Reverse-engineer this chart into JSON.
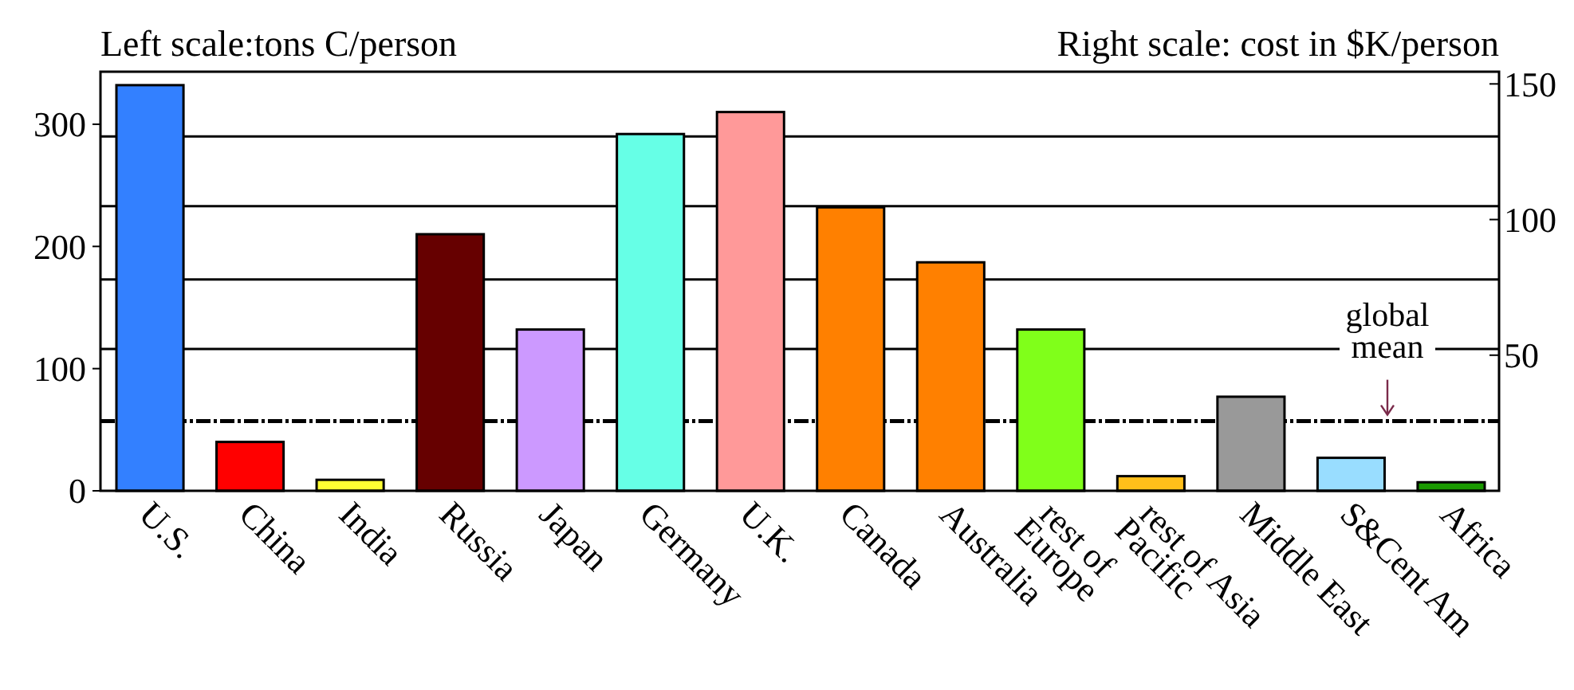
{
  "chart_data": {
    "type": "bar",
    "ylabel": "Left scale:tons C/person",
    "y2label": "Right scale: cost in $K/person",
    "categories": [
      "U.S.",
      "China",
      "India",
      "Russia",
      "Japan",
      "Germany",
      "U.K.",
      "Canada",
      "Australia",
      "rest of\nEurope",
      "rest of Asia\nPacific",
      "Middle East",
      "S&Cent Am",
      "Africa"
    ],
    "values": [
      332,
      40,
      9,
      210,
      132,
      292,
      310,
      232,
      187,
      132,
      12,
      77,
      27,
      7
    ],
    "colors": [
      "#3380ff",
      "#ff0000",
      "#ffff33",
      "#660000",
      "#cc99ff",
      "#66ffe6",
      "#ff9999",
      "#ff8000",
      "#ff8000",
      "#80ff1a",
      "#ffbf1a",
      "#999999",
      "#99ddff",
      "#1a9900"
    ],
    "ylim": [
      0,
      343
    ],
    "yticks": [
      0,
      100,
      200,
      300
    ],
    "y2lim": [
      0,
      154.5
    ],
    "y2ticks": [
      50,
      100,
      150
    ],
    "ref_lines": [
      {
        "axis": "y",
        "value": 57,
        "label": "global\nmean",
        "line_style": "dashed"
      },
      {
        "axis": "y",
        "value": 116,
        "line_style": "solid"
      },
      {
        "axis": "y",
        "value": 173,
        "line_style": "solid"
      },
      {
        "axis": "y",
        "value": 233,
        "line_style": "solid"
      },
      {
        "axis": "y",
        "value": 290,
        "line_style": "solid"
      }
    ],
    "grid": false
  }
}
